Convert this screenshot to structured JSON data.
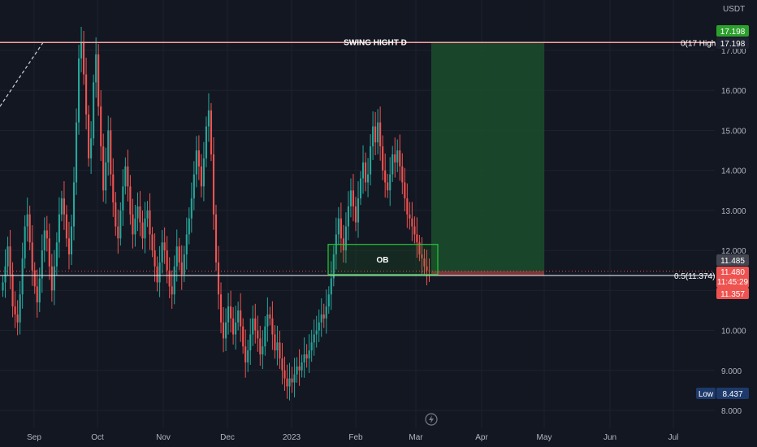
{
  "chart_data": {
    "type": "candlestick",
    "currency": "USDT",
    "y_ticks": [
      "17.000",
      "16.000",
      "15.000",
      "14.000",
      "13.000",
      "12.000",
      "11.000",
      "10.000",
      "9.000",
      "8.000"
    ],
    "y_range": [
      7.8,
      17.9
    ],
    "x_labels": [
      "Sep",
      "Oct",
      "Nov",
      "Dec",
      "2023",
      "Feb",
      "Mar",
      "Apr",
      "May",
      "Jun",
      "Jul"
    ],
    "series": [
      {
        "name": "price",
        "values": [
          11.2,
          11.6,
          12.1,
          11.4,
          10.6,
          10.4,
          10.2,
          10.9,
          11.8,
          12.6,
          12.9,
          12.2,
          11.5,
          11.1,
          10.7,
          11.3,
          12.0,
          12.5,
          12.3,
          11.6,
          11.0,
          11.6,
          12.2,
          12.9,
          13.3,
          12.9,
          12.3,
          11.9,
          12.6,
          13.7,
          15.2,
          16.8,
          17.2,
          16.4,
          15.4,
          14.3,
          14.8,
          16.2,
          16.9,
          15.6,
          14.6,
          13.5,
          14.2,
          15.0,
          13.9,
          13.2,
          12.6,
          12.3,
          13.0,
          13.6,
          14.1,
          13.6,
          12.9,
          12.4,
          12.8,
          13.1,
          12.7,
          12.3,
          12.8,
          13.0,
          12.4,
          12.0,
          11.6,
          11.2,
          11.7,
          12.2,
          12.0,
          11.5,
          11.1,
          10.9,
          11.6,
          12.1,
          11.7,
          11.4,
          11.9,
          12.4,
          12.8,
          13.3,
          13.9,
          14.5,
          14.1,
          13.6,
          14.3,
          15.1,
          15.5,
          14.4,
          12.9,
          11.7,
          10.9,
          10.2,
          9.8,
          10.2,
          10.6,
          10.3,
          9.9,
          10.2,
          10.5,
          10.1,
          9.6,
          9.2,
          9.5,
          9.9,
          10.3,
          10.0,
          9.8,
          9.4,
          9.6,
          10.1,
          10.4,
          10.3,
          9.9,
          9.5,
          9.7,
          9.3,
          9.0,
          8.8,
          8.6,
          8.8,
          8.7,
          8.9,
          9.1,
          9.0,
          9.2,
          9.4,
          9.3,
          9.5,
          9.7,
          9.9,
          10.0,
          10.2,
          10.4,
          10.3,
          10.6,
          10.9,
          11.3,
          11.9,
          12.4,
          12.8,
          12.3,
          12.0,
          12.6,
          13.1,
          13.5,
          13.1,
          12.7,
          13.3,
          13.8,
          14.2,
          13.7,
          13.9,
          14.6,
          15.1,
          14.7,
          15.2,
          14.6,
          14.0,
          13.7,
          13.5,
          13.9,
          14.4,
          14.2,
          14.5,
          14.1,
          13.7,
          13.3,
          12.9,
          12.8,
          12.6,
          12.4,
          12.2,
          11.9,
          11.8,
          11.6,
          11.5,
          11.48
        ]
      }
    ],
    "annotations": {
      "swing_label": "SWING HIGHT D",
      "swing_level": 17.198,
      "fib_top_label": "0(17 High",
      "fib_mid_label": "0.5(11.374)",
      "fib_mid_level": 11.374,
      "ob_label": "OB",
      "ob_range": [
        11.4,
        12.15
      ],
      "target_zone": [
        11.48,
        17.198
      ],
      "stop_level": 11.374,
      "low_label": "Low",
      "low_value": "8.437"
    },
    "price_tags": {
      "top_green": "17.198",
      "top_dark": "17.198",
      "last_gray": "11.485",
      "last_red": "11.480",
      "countdown": "11:45:29",
      "bottom_red": "11.357"
    },
    "grid": true,
    "colors": {
      "background": "#131722",
      "up": "#26a69a",
      "down": "#ef5350",
      "grid": "#1e222d",
      "target_zone": "#1b4d2b",
      "ob_border": "#26c839",
      "swing_line": "#f5a1a1",
      "axis_text": "#b2b5be"
    }
  }
}
